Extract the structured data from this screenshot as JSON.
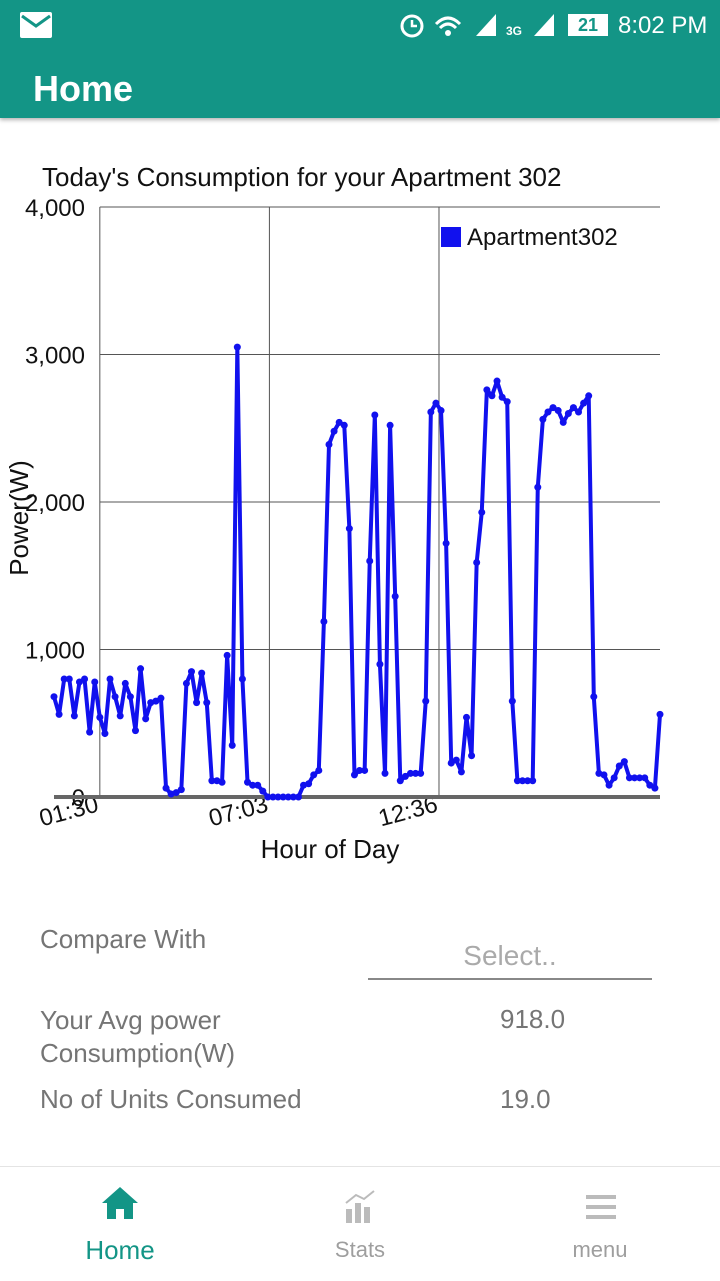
{
  "status_bar": {
    "network": "3G",
    "battery": "21",
    "time": "8:02 PM"
  },
  "app_bar": {
    "title": "Home"
  },
  "chart_data": {
    "type": "line",
    "title": "Today's Consumption for your Apartment 302",
    "xlabel": "Hour of Day",
    "ylabel": "Power(W)",
    "x": [
      0,
      10,
      20,
      30,
      40,
      50,
      60,
      70,
      80,
      90,
      100,
      110,
      120,
      130,
      140,
      150,
      160,
      170,
      180,
      190,
      200,
      210,
      220,
      230,
      240,
      250,
      260,
      270,
      280,
      290,
      300,
      310,
      320,
      330,
      340,
      350,
      360,
      370,
      380,
      390,
      400,
      410,
      420,
      430,
      440,
      450,
      460,
      470,
      480,
      490,
      500,
      510,
      520,
      530,
      540,
      550,
      560,
      570,
      580,
      590,
      600,
      610,
      620,
      630,
      640,
      650,
      660,
      670,
      680,
      690,
      700,
      710,
      720,
      730,
      740,
      750,
      760,
      770,
      780,
      790,
      800,
      810,
      820,
      830,
      840,
      850,
      860,
      870,
      880,
      890,
      900,
      910,
      920,
      930,
      940,
      950,
      960,
      970,
      980,
      990,
      1000,
      1010,
      1020,
      1030,
      1040,
      1050,
      1060,
      1070,
      1080,
      1090,
      1100,
      1110,
      1120,
      1130,
      1140,
      1150,
      1160,
      1170,
      1180,
      1190
    ],
    "series": [
      {
        "name": "Apartment302",
        "color": "#1111ee",
        "values": [
          680,
          560,
          800,
          800,
          550,
          780,
          800,
          440,
          780,
          540,
          430,
          800,
          680,
          550,
          770,
          680,
          450,
          870,
          530,
          640,
          650,
          670,
          60,
          20,
          30,
          50,
          770,
          850,
          640,
          840,
          640,
          110,
          110,
          100,
          960,
          350,
          3050,
          800,
          100,
          80,
          80,
          40,
          0,
          0,
          0,
          0,
          0,
          0,
          0,
          80,
          90,
          150,
          180,
          1190,
          2390,
          2480,
          2540,
          2520,
          1820,
          150,
          180,
          180,
          1600,
          2590,
          900,
          160,
          2520,
          1360,
          110,
          140,
          160,
          160,
          160,
          650,
          2610,
          2670,
          2620,
          1720,
          230,
          250,
          170,
          540,
          280,
          1590,
          1930,
          2760,
          2720,
          2820,
          2710,
          2680,
          650,
          110,
          110,
          110,
          110,
          2100,
          2560,
          2610,
          2640,
          2620,
          2540,
          2600,
          2640,
          2610,
          2670,
          2720,
          680,
          160,
          150,
          80,
          130,
          210,
          240,
          130,
          130,
          130,
          130,
          80,
          60,
          560
        ]
      }
    ],
    "xlim": [
      0,
      1190
    ],
    "xticks": [
      {
        "value": 90,
        "label": "01:30"
      },
      {
        "value": 423,
        "label": "07:03"
      },
      {
        "value": 756,
        "label": "12:36"
      }
    ],
    "ylim": [
      0,
      4000
    ],
    "yticks": [
      0,
      {
        "value": 1000,
        "label": "1,000"
      },
      {
        "value": 2000,
        "label": "2,000"
      },
      {
        "value": 3000,
        "label": "3,000"
      },
      {
        "value": 4000,
        "label": "4,000"
      }
    ],
    "grid": true,
    "legend": "top-right"
  },
  "form": {
    "compare_label": "Compare With",
    "select_placeholder": "Select..",
    "avg_label": "Your Avg power Consumption(W)",
    "avg_value": "918.0",
    "units_label": "No of Units Consumed",
    "units_value": "19.0"
  },
  "bottom_nav": {
    "items": [
      "Home",
      "Stats",
      "menu"
    ]
  }
}
